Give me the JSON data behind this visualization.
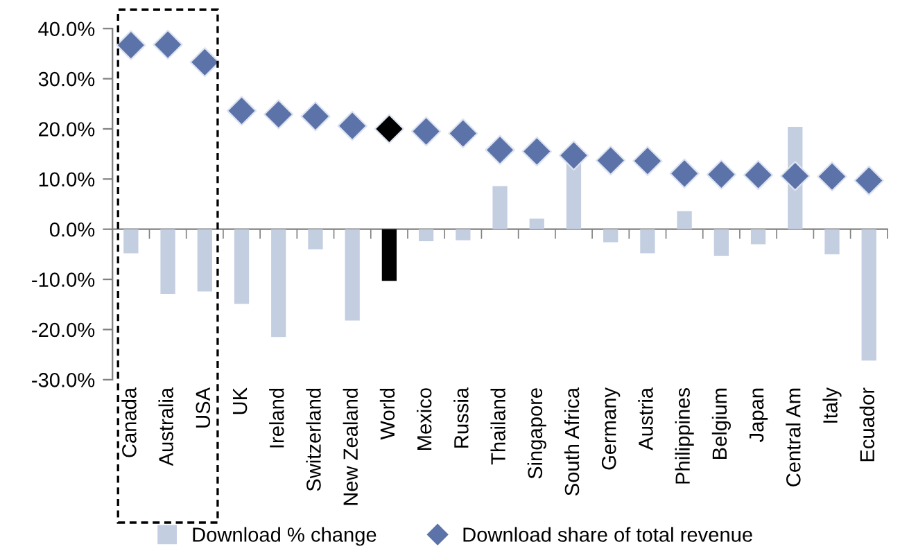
{
  "chart_data": {
    "type": "bar",
    "categories": [
      "Canada",
      "Australia",
      "USA",
      "UK",
      "Ireland",
      "Switzerland",
      "New Zealand",
      "World",
      "Mexico",
      "Russia",
      "Thailand",
      "Singapore",
      "South Africa",
      "Germany",
      "Austria",
      "Philippines",
      "Belgium",
      "Japan",
      "Central Am",
      "Italy",
      "Ecuador"
    ],
    "series": [
      {
        "name": "Download % change",
        "color": "#c3cee1",
        "colors": [
          "#c3cee1",
          "#c3cee1",
          "#c3cee1",
          "#c3cee1",
          "#c3cee1",
          "#c3cee1",
          "#c3cee1",
          "#000000",
          "#c3cee1",
          "#c3cee1",
          "#c3cee1",
          "#c3cee1",
          "#c3cee1",
          "#c3cee1",
          "#c3cee1",
          "#c3cee1",
          "#c3cee1",
          "#c3cee1",
          "#c3cee1",
          "#c3cee1",
          "#c3cee1"
        ],
        "values": [
          -4.8,
          -12.9,
          -12.4,
          -14.9,
          -21.5,
          -4.0,
          -18.2,
          -10.3,
          -2.4,
          -2.2,
          8.6,
          2.1,
          13.5,
          -2.6,
          -4.8,
          3.6,
          -5.3,
          -3.0,
          20.4,
          -5.0,
          -26.2
        ]
      },
      {
        "name": "Download share of total revenue",
        "type": "scatter",
        "marker": "diamond",
        "color": "#5b73a9",
        "colors": [
          "#5b73a9",
          "#5b73a9",
          "#5b73a9",
          "#5b73a9",
          "#5b73a9",
          "#5b73a9",
          "#5b73a9",
          "#000000",
          "#5b73a9",
          "#5b73a9",
          "#5b73a9",
          "#5b73a9",
          "#5b73a9",
          "#5b73a9",
          "#5b73a9",
          "#5b73a9",
          "#5b73a9",
          "#5b73a9",
          "#5b73a9",
          "#5b73a9",
          "#5b73a9"
        ],
        "values": [
          36.7,
          36.8,
          33.3,
          23.6,
          22.9,
          22.5,
          20.6,
          20.0,
          19.5,
          19.1,
          15.8,
          15.5,
          14.7,
          13.7,
          13.6,
          11.1,
          10.9,
          10.8,
          10.6,
          10.5,
          9.7
        ]
      }
    ],
    "ylim": [
      -30,
      40
    ],
    "yticks": [
      {
        "value": -30,
        "label": "-30.0%"
      },
      {
        "value": -20,
        "label": "-20.0%"
      },
      {
        "value": -10,
        "label": "-10.0%"
      },
      {
        "value": 0,
        "label": "0.0%"
      },
      {
        "value": 10,
        "label": "10.0%"
      },
      {
        "value": 20,
        "label": "20.0%"
      },
      {
        "value": 30,
        "label": "30.0%"
      },
      {
        "value": 40,
        "label": "40.0%"
      }
    ],
    "legend": "bottom"
  }
}
